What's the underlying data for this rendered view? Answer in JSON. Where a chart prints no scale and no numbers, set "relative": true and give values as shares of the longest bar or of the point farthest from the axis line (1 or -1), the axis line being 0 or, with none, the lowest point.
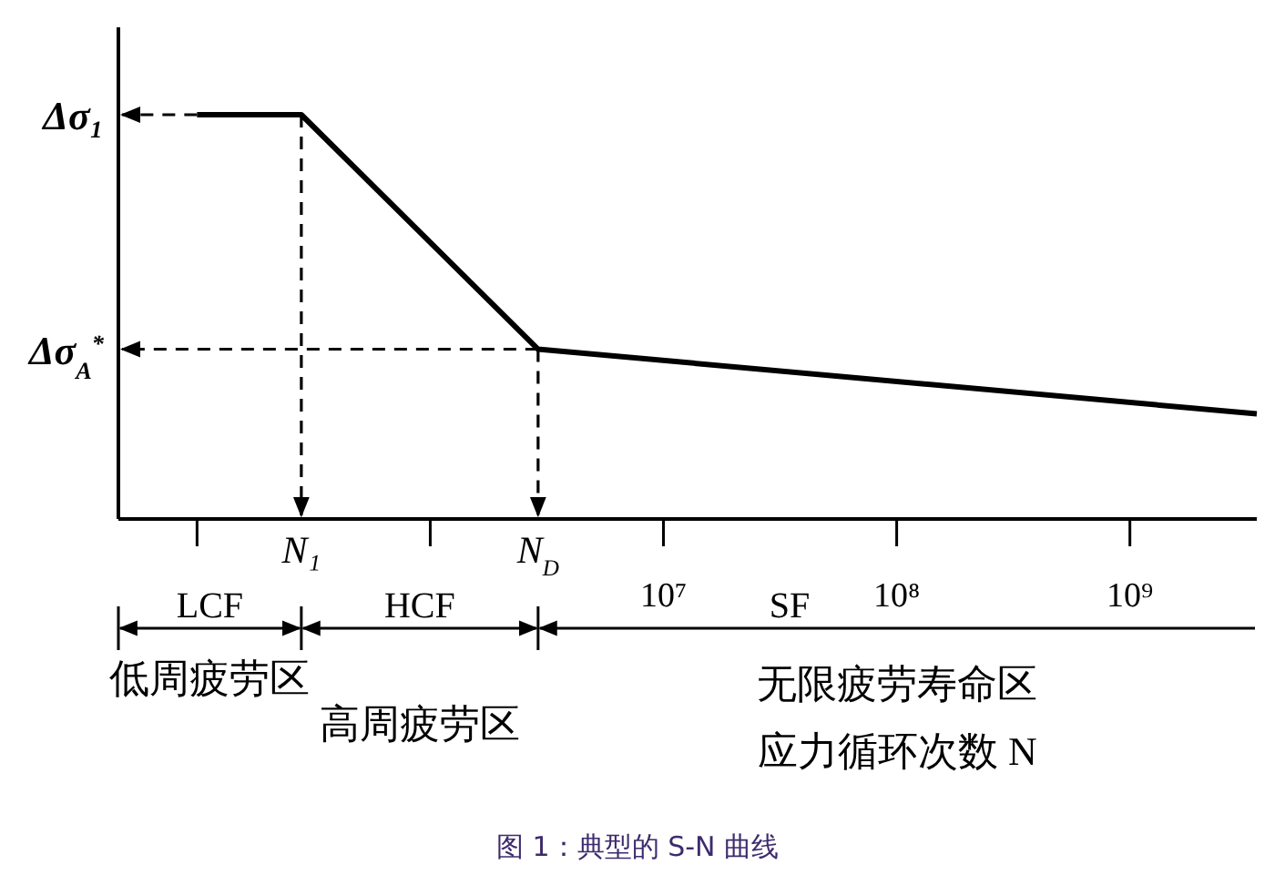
{
  "chart_data": {
    "type": "line",
    "title": "图 1：典型的 S-N 曲线",
    "xlabel": "应力循环次数 N",
    "relative": true,
    "log": "x",
    "x": [
      100000,
      280000,
      2900000,
      3500000000
    ],
    "series": [
      {
        "color": "#000000",
        "values": [
          1,
          1,
          0.42,
          0.26
        ]
      }
    ],
    "xlim": [
      46000,
      3500000000
    ],
    "xticks": [
      {
        "value": 100000,
        "label": null
      },
      {
        "value": 1000000,
        "label": null
      },
      {
        "value": 10000000,
        "label": "10⁷"
      },
      {
        "value": 100000000,
        "label": "10⁸"
      },
      {
        "value": 1000000000,
        "label": "10⁹"
      }
    ],
    "ref_lines": [
      {
        "axis": "y",
        "value": 1,
        "label": "Δσ₁",
        "line_style": "dashed"
      },
      {
        "axis": "y",
        "value": 0.42,
        "label": "Δσ$_{A}$$^{*}$",
        "line_style": "dashed"
      },
      {
        "axis": "x",
        "value": 280000,
        "label": "N₁",
        "line_style": "dashed"
      },
      {
        "axis": "x",
        "value": 2900000,
        "label": "N$_{D}$",
        "line_style": "dashed"
      }
    ],
    "annotations": [
      "LCF",
      "HCF",
      "SF",
      "低周疲劳区",
      "高周疲劳区",
      "无限疲劳寿命区"
    ]
  }
}
